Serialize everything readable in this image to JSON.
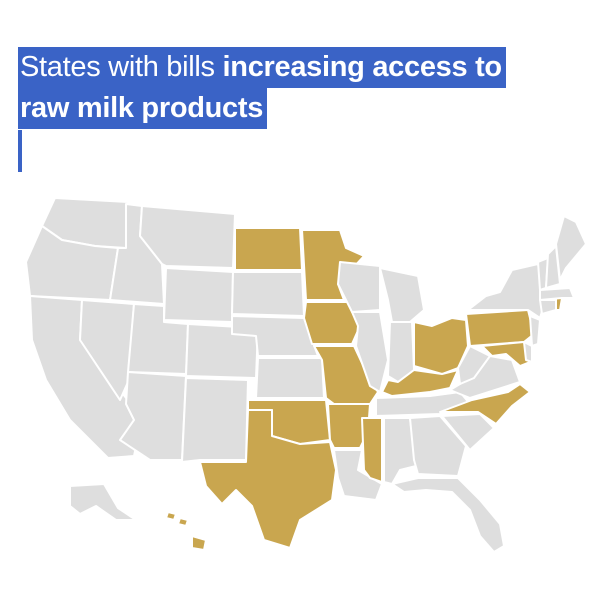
{
  "title": {
    "prefix": "States with bills",
    "line1_bold": "increasing access to",
    "line2_bold": "raw milk products"
  },
  "colors": {
    "highlight_bg": "#3a63c6",
    "highlight_text": "#ffffff",
    "state_with_bill": "#c9a64f",
    "state_without_bill": "#dedede",
    "state_border": "#ffffff"
  },
  "map_data": {
    "states_with_bills": [
      "North Dakota",
      "Minnesota",
      "Iowa",
      "Missouri",
      "Arkansas",
      "Oklahoma",
      "Texas",
      "Mississippi",
      "Kentucky",
      "Ohio",
      "Pennsylvania",
      "Maryland",
      "North Carolina",
      "Rhode Island",
      "Hawaii"
    ]
  }
}
